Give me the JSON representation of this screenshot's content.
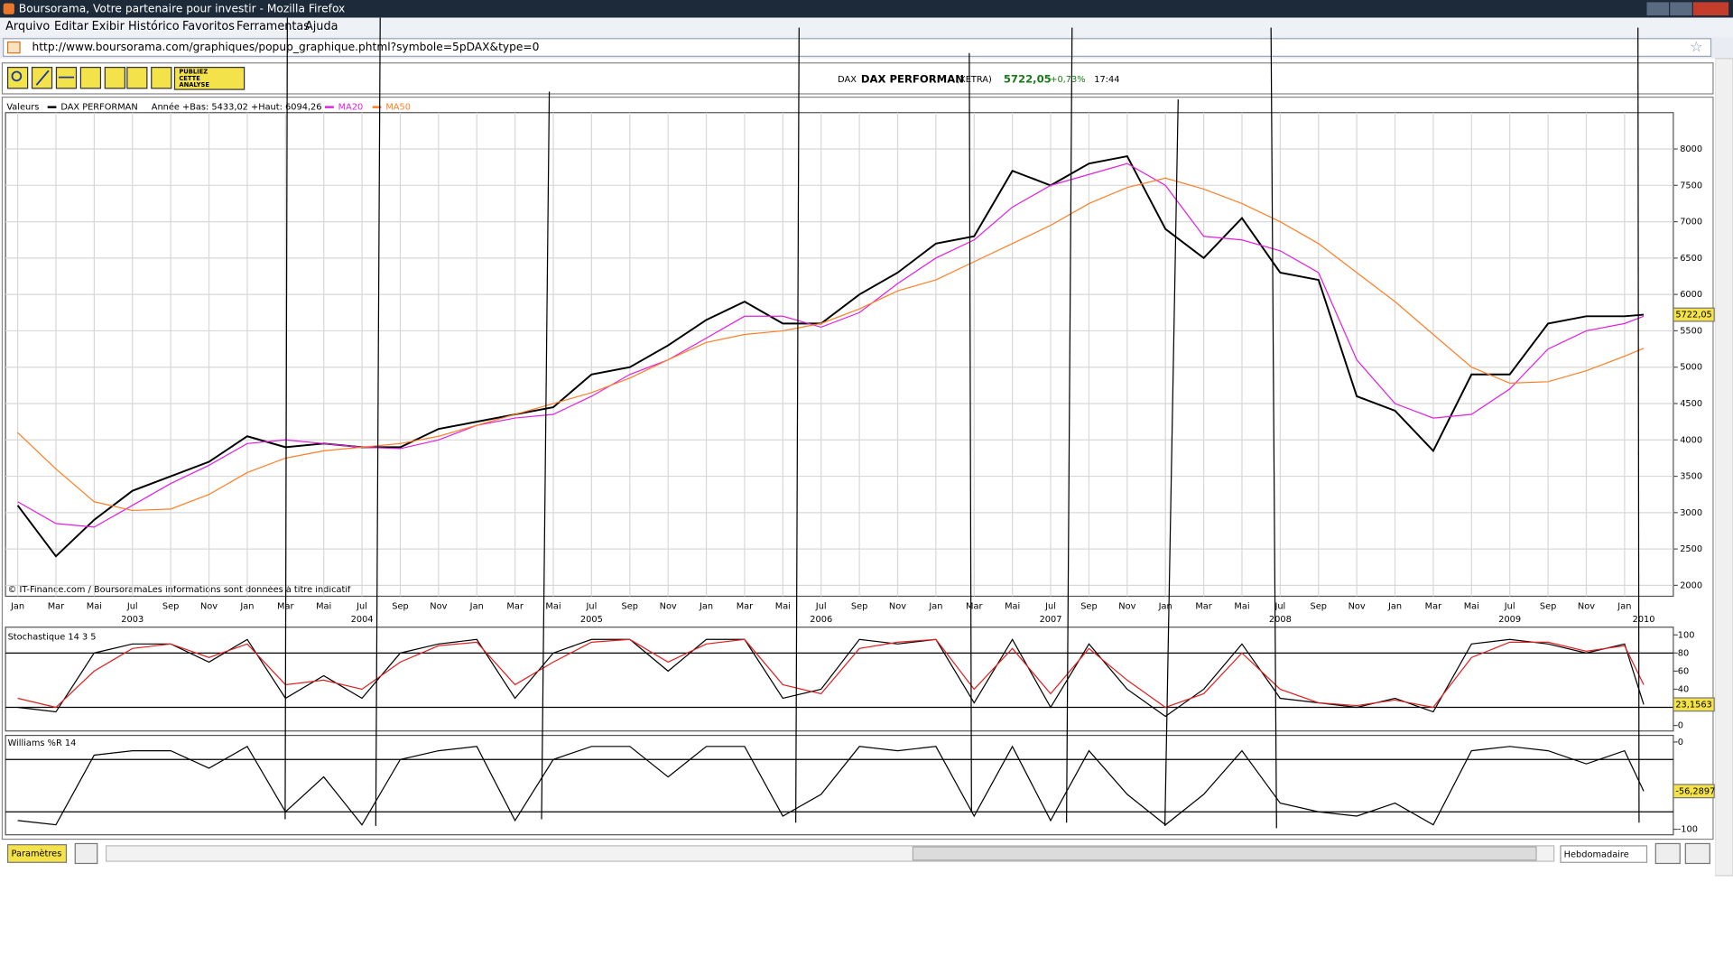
{
  "window": {
    "title": "Boursorama, Votre partenaire pour investir - Mozilla Firefox"
  },
  "menu": [
    "Arquivo",
    "Editar",
    "Exibir",
    "Histórico",
    "Favoritos",
    "Ferramentas",
    "Ajuda"
  ],
  "address": "http://www.boursorama.com/graphiques/popup_graphique.phtml?symbole=5pDAX&type=0",
  "toolbar": {
    "publish": [
      "PUBLIEZ",
      "CETTE",
      "ANALYSE"
    ]
  },
  "quote": {
    "market": "DAX",
    "name": "DAX PERFORMAN",
    "exchange": "(XETRA)",
    "price": "5722,05",
    "change": "+0,73%",
    "time": "17:44"
  },
  "chart_data": [
    {
      "type": "line",
      "legend_title": "Valeurs",
      "annotation": "Année +Bas: 5433,02 +Haut: 6094,26",
      "source": "© IT-Finance.com / BoursoramaLes informations sont données à titre indicatif",
      "grid": true,
      "xlim": [
        "2003-01",
        "2010-03"
      ],
      "ylim": [
        1850,
        8500
      ],
      "yticks": [
        2000,
        2500,
        3000,
        3500,
        4000,
        4500,
        5000,
        5500,
        6000,
        6500,
        7000,
        7500,
        8000
      ],
      "xticks": [
        {
          "value": "2003-01",
          "label": "Jan"
        },
        {
          "value": "2003-03",
          "label": "Mar"
        },
        {
          "value": "2003-05",
          "label": "Mai"
        },
        {
          "value": "2003-07",
          "label": "Jul"
        },
        {
          "value": "2003-09",
          "label": "Sep"
        },
        {
          "value": "2003-11",
          "label": "Nov"
        },
        {
          "value": "2004-01",
          "label": "Jan"
        },
        {
          "value": "2004-03",
          "label": "Mar"
        },
        {
          "value": "2004-05",
          "label": "Mai"
        },
        {
          "value": "2004-07",
          "label": "Jul"
        },
        {
          "value": "2004-09",
          "label": "Sep"
        },
        {
          "value": "2004-11",
          "label": "Nov"
        },
        {
          "value": "2005-01",
          "label": "Jan"
        },
        {
          "value": "2005-03",
          "label": "Mar"
        },
        {
          "value": "2005-05",
          "label": "Mai"
        },
        {
          "value": "2005-07",
          "label": "Jul"
        },
        {
          "value": "2005-09",
          "label": "Sep"
        },
        {
          "value": "2005-11",
          "label": "Nov"
        },
        {
          "value": "2006-01",
          "label": "Jan"
        },
        {
          "value": "2006-03",
          "label": "Mar"
        },
        {
          "value": "2006-05",
          "label": "Mai"
        },
        {
          "value": "2006-07",
          "label": "Jul"
        },
        {
          "value": "2006-09",
          "label": "Sep"
        },
        {
          "value": "2006-11",
          "label": "Nov"
        },
        {
          "value": "2007-01",
          "label": "Jan"
        },
        {
          "value": "2007-03",
          "label": "Mar"
        },
        {
          "value": "2007-05",
          "label": "Mai"
        },
        {
          "value": "2007-07",
          "label": "Jul"
        },
        {
          "value": "2007-09",
          "label": "Sep"
        },
        {
          "value": "2007-11",
          "label": "Nov"
        },
        {
          "value": "2008-01",
          "label": "Jan"
        },
        {
          "value": "2008-03",
          "label": "Mar"
        },
        {
          "value": "2008-05",
          "label": "Mai"
        },
        {
          "value": "2008-07",
          "label": "Jul"
        },
        {
          "value": "2008-09",
          "label": "Sep"
        },
        {
          "value": "2008-11",
          "label": "Nov"
        },
        {
          "value": "2009-01",
          "label": "Jan"
        },
        {
          "value": "2009-03",
          "label": "Mar"
        },
        {
          "value": "2009-05",
          "label": "Mai"
        },
        {
          "value": "2009-07",
          "label": "Jul"
        },
        {
          "value": "2009-09",
          "label": "Sep"
        },
        {
          "value": "2009-11",
          "label": "Nov"
        },
        {
          "value": "2010-01",
          "label": "Jan"
        }
      ],
      "year_ticks": [
        {
          "value": "2003-07",
          "label": "2003"
        },
        {
          "value": "2004-07",
          "label": "2004"
        },
        {
          "value": "2005-07",
          "label": "2005"
        },
        {
          "value": "2006-07",
          "label": "2006"
        },
        {
          "value": "2007-07",
          "label": "2007"
        },
        {
          "value": "2008-07",
          "label": "2008"
        },
        {
          "value": "2009-07",
          "label": "2009"
        },
        {
          "value": "2010-02",
          "label": "2010"
        }
      ],
      "x": [
        "2003-01",
        "2003-03",
        "2003-05",
        "2003-07",
        "2003-09",
        "2003-11",
        "2004-01",
        "2004-03",
        "2004-05",
        "2004-07",
        "2004-09",
        "2004-11",
        "2005-01",
        "2005-03",
        "2005-05",
        "2005-07",
        "2005-09",
        "2005-11",
        "2006-01",
        "2006-03",
        "2006-05",
        "2006-07",
        "2006-09",
        "2006-11",
        "2007-01",
        "2007-03",
        "2007-05",
        "2007-07",
        "2007-09",
        "2007-11",
        "2008-01",
        "2008-03",
        "2008-05",
        "2008-07",
        "2008-09",
        "2008-11",
        "2009-01",
        "2009-03",
        "2009-05",
        "2009-07",
        "2009-09",
        "2009-11",
        "2010-01",
        "2010-02"
      ],
      "series": [
        {
          "name": "DAX PERFORMAN",
          "color": "#000000",
          "values": [
            3100,
            2400,
            2900,
            3300,
            3500,
            3700,
            4050,
            3900,
            3950,
            3900,
            3900,
            4150,
            4250,
            4350,
            4450,
            4900,
            5000,
            5300,
            5650,
            5900,
            5600,
            5600,
            6000,
            6300,
            6700,
            6800,
            7700,
            7500,
            7800,
            7900,
            6900,
            6500,
            7050,
            6300,
            6200,
            4600,
            4400,
            3850,
            4900,
            4900,
            5600,
            5700,
            5700,
            5722.05
          ]
        },
        {
          "name": "MA20",
          "color": "#e020e0",
          "values": [
            3150,
            2850,
            2800,
            3100,
            3400,
            3650,
            3950,
            4000,
            3950,
            3900,
            3880,
            4000,
            4200,
            4300,
            4350,
            4600,
            4900,
            5100,
            5400,
            5700,
            5700,
            5550,
            5750,
            6150,
            6500,
            6750,
            7200,
            7500,
            7650,
            7800,
            7500,
            6800,
            6750,
            6600,
            6300,
            5100,
            4500,
            4300,
            4350,
            4700,
            5250,
            5500,
            5600,
            5700
          ]
        },
        {
          "name": "MA50",
          "color": "#ff7f27",
          "values": [
            4100,
            3600,
            3150,
            3030,
            3050,
            3250,
            3550,
            3750,
            3850,
            3900,
            3950,
            4050,
            4200,
            4350,
            4500,
            4650,
            4850,
            5100,
            5340,
            5450,
            5500,
            5600,
            5800,
            6050,
            6200,
            6450,
            6700,
            6950,
            7250,
            7470,
            7600,
            7450,
            7250,
            7000,
            6700,
            6300,
            5900,
            5450,
            5000,
            4780,
            4800,
            4950,
            5150,
            5260
          ]
        }
      ],
      "last_label": {
        "value": 5722.05,
        "label": "5722,05"
      }
    },
    {
      "type": "line",
      "title": "Stochastique 14 3 5",
      "grid": false,
      "xlim": [
        "2003-01",
        "2010-03"
      ],
      "ylim": [
        0,
        100
      ],
      "yticks": [
        0,
        20,
        40,
        60,
        80,
        100
      ],
      "hlines": [
        80,
        20
      ],
      "x": [
        "2003-01",
        "2003-03",
        "2003-05",
        "2003-07",
        "2003-09",
        "2003-11",
        "2004-01",
        "2004-03",
        "2004-05",
        "2004-07",
        "2004-09",
        "2004-11",
        "2005-01",
        "2005-03",
        "2005-05",
        "2005-07",
        "2005-09",
        "2005-11",
        "2006-01",
        "2006-03",
        "2006-05",
        "2006-07",
        "2006-09",
        "2006-11",
        "2007-01",
        "2007-03",
        "2007-05",
        "2007-07",
        "2007-09",
        "2007-11",
        "2008-01",
        "2008-03",
        "2008-05",
        "2008-07",
        "2008-09",
        "2008-11",
        "2009-01",
        "2009-03",
        "2009-05",
        "2009-07",
        "2009-09",
        "2009-11",
        "2010-01",
        "2010-02"
      ],
      "series": [
        {
          "color": "#000000",
          "values": [
            20,
            15,
            80,
            90,
            90,
            70,
            95,
            30,
            55,
            30,
            80,
            90,
            95,
            30,
            80,
            95,
            95,
            60,
            95,
            95,
            30,
            40,
            95,
            90,
            95,
            25,
            95,
            20,
            90,
            40,
            10,
            40,
            90,
            30,
            25,
            20,
            30,
            15,
            90,
            95,
            90,
            80,
            90,
            23.1563
          ]
        },
        {
          "color": "#e02020",
          "values": [
            30,
            20,
            60,
            85,
            90,
            75,
            90,
            45,
            50,
            40,
            70,
            88,
            92,
            45,
            70,
            92,
            95,
            70,
            90,
            95,
            45,
            35,
            85,
            92,
            95,
            40,
            85,
            35,
            85,
            50,
            20,
            35,
            80,
            40,
            25,
            22,
            28,
            20,
            75,
            92,
            92,
            82,
            88,
            45
          ]
        }
      ],
      "last_label": {
        "value": 23.1563,
        "label": "23,1563"
      }
    },
    {
      "type": "line",
      "title": "Williams %R 14",
      "grid": false,
      "xlim": [
        "2003-01",
        "2010-03"
      ],
      "ylim": [
        -100,
        0
      ],
      "yticks": [
        0,
        -100
      ],
      "hlines": [
        -20,
        -80
      ],
      "x": [
        "2003-01",
        "2003-03",
        "2003-05",
        "2003-07",
        "2003-09",
        "2003-11",
        "2004-01",
        "2004-03",
        "2004-05",
        "2004-07",
        "2004-09",
        "2004-11",
        "2005-01",
        "2005-03",
        "2005-05",
        "2005-07",
        "2005-09",
        "2005-11",
        "2006-01",
        "2006-03",
        "2006-05",
        "2006-07",
        "2006-09",
        "2006-11",
        "2007-01",
        "2007-03",
        "2007-05",
        "2007-07",
        "2007-09",
        "2007-11",
        "2008-01",
        "2008-03",
        "2008-05",
        "2008-07",
        "2008-09",
        "2008-11",
        "2009-01",
        "2009-03",
        "2009-05",
        "2009-07",
        "2009-09",
        "2009-11",
        "2010-01",
        "2010-02"
      ],
      "series": [
        {
          "color": "#000000",
          "values": [
            -90,
            -95,
            -15,
            -10,
            -10,
            -30,
            -5,
            -80,
            -40,
            -95,
            -20,
            -10,
            -5,
            -90,
            -20,
            -5,
            -5,
            -40,
            -5,
            -5,
            -85,
            -60,
            -5,
            -10,
            -5,
            -85,
            -5,
            -90,
            -10,
            -60,
            -95,
            -60,
            -10,
            -70,
            -80,
            -85,
            -70,
            -95,
            -10,
            -5,
            -10,
            -25,
            -10,
            -56.2897
          ]
        }
      ],
      "last_label": {
        "value": -56.2897,
        "label": "-56,2897"
      }
    }
  ],
  "footer": {
    "parameters": "Paramètres",
    "period": "Hebdomadaire"
  }
}
